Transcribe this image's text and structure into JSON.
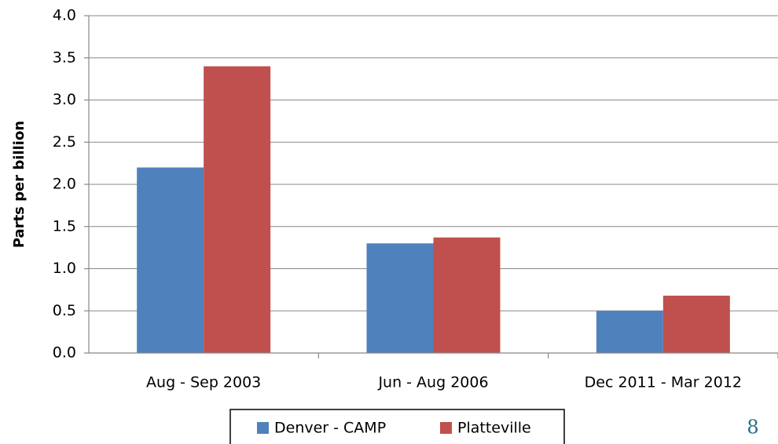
{
  "chart_data": {
    "type": "bar",
    "y_label": "Parts per billion",
    "categories": [
      "Aug - Sep 2003",
      "Jun - Aug 2006",
      "Dec 2011 - Mar 2012"
    ],
    "series": [
      {
        "name": "Denver - CAMP",
        "color": "#4f81bd",
        "values": [
          2.2,
          1.3,
          0.5
        ]
      },
      {
        "name": "Platteville",
        "color": "#c0504d",
        "values": [
          3.4,
          1.37,
          0.68
        ]
      }
    ],
    "ylim": [
      0,
      4
    ],
    "yticks": [
      {
        "value": 0,
        "label": "0.0"
      },
      0.5,
      {
        "value": 1,
        "label": "1.0"
      },
      1.5,
      {
        "value": 2,
        "label": "2.0"
      },
      2.5,
      {
        "value": 3,
        "label": "3.0"
      },
      3.5,
      {
        "value": 4,
        "label": "4.0"
      }
    ],
    "grid": true
  },
  "page_number": "8"
}
